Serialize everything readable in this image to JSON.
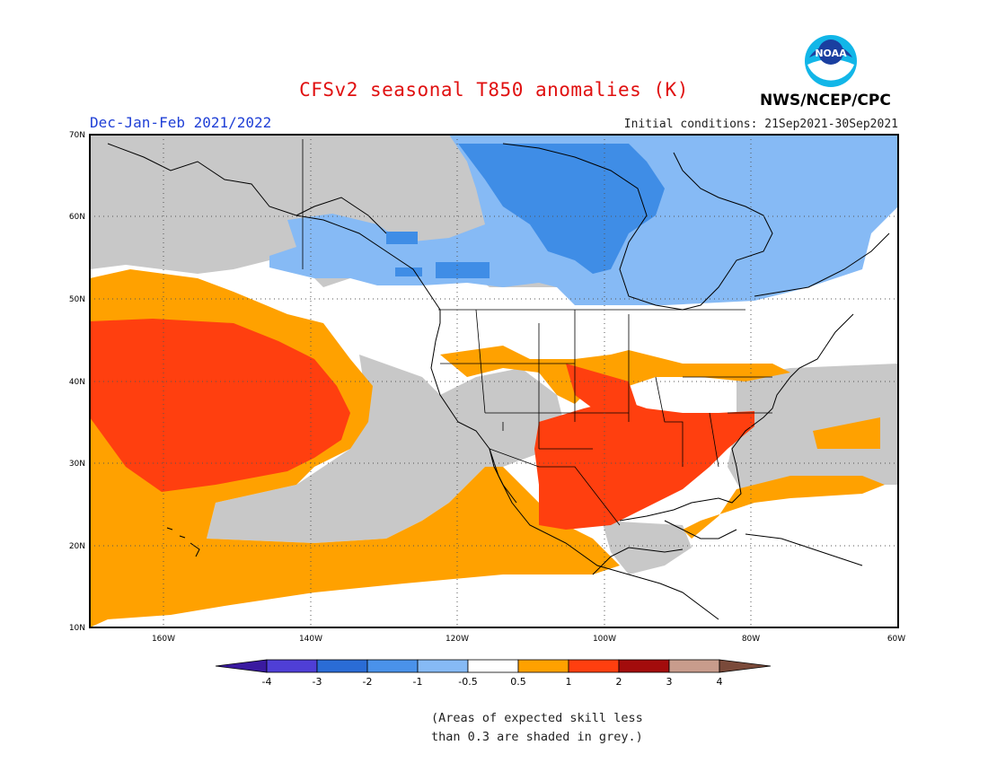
{
  "header": {
    "title": "CFSv2 seasonal T850 anomalies (K)",
    "season": "Dec-Jan-Feb 2021/2022",
    "initial_conditions": "Initial conditions: 21Sep2021-30Sep2021",
    "agency": "NWS/NCEP/CPC",
    "logo_text": "NOAA"
  },
  "map": {
    "lat_labels": [
      "70N",
      "60N",
      "50N",
      "40N",
      "30N",
      "20N",
      "10N"
    ],
    "lon_labels": [
      "160W",
      "140W",
      "120W",
      "100W",
      "80W",
      "60W"
    ],
    "lat_range": [
      10,
      70
    ],
    "lon_range": [
      -170,
      -60
    ],
    "grid": "dotted"
  },
  "legend": {
    "ticks": [
      "-4",
      "-3",
      "-2",
      "-1",
      "-0.5",
      "0.5",
      "1",
      "2",
      "3",
      "4"
    ],
    "colors": [
      "#3a1aa0",
      "#4f3fd6",
      "#2a6cd6",
      "#4a92ea",
      "#86baf5",
      "#ffffff",
      "#ffa100",
      "#ff3f0f",
      "#a30c0c",
      "#c89c8c",
      "#7a4a3a"
    ]
  },
  "regions": {
    "skill_grey": "#c8c8c8",
    "orange": "#ffa100",
    "red": "#ff3f0f",
    "blue": "#3f8de6",
    "light_blue": "#86baf5"
  },
  "footnote": {
    "line1": "(Areas of expected skill less",
    "line2": "than 0.3 are shaded in grey.)"
  }
}
